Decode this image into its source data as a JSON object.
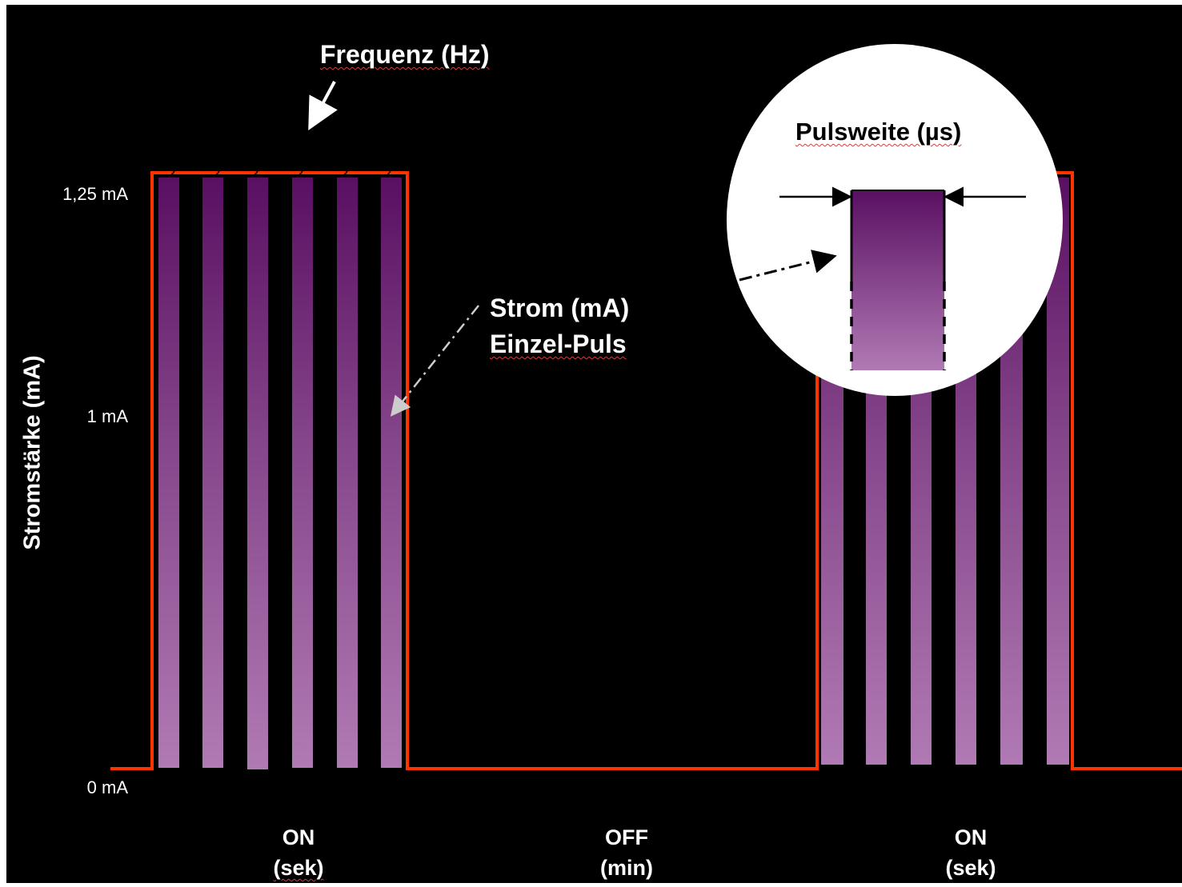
{
  "diagram": {
    "y_axis_label": "Stromstärke (mA)",
    "y_ticks": [
      "1,25 mA",
      "1 mA",
      "0 mA"
    ],
    "annotations": {
      "frequency": "Frequenz (Hz)",
      "current_line1": "Strom (mA)",
      "current_line2": "Einzel-Puls",
      "pulse_width": "Pulsweite (µs)"
    },
    "phases": [
      {
        "label": "ON",
        "unit": "(sek)"
      },
      {
        "label": "OFF",
        "unit": "(min)"
      },
      {
        "label": "ON",
        "unit": "(sek)"
      }
    ],
    "colors": {
      "background": "#000000",
      "envelope": "#ff3300",
      "pulse_top": "#5a0f62",
      "pulse_bottom": "#b07ab4",
      "text": "#ffffff"
    },
    "pulses_per_on_phase": 6
  }
}
